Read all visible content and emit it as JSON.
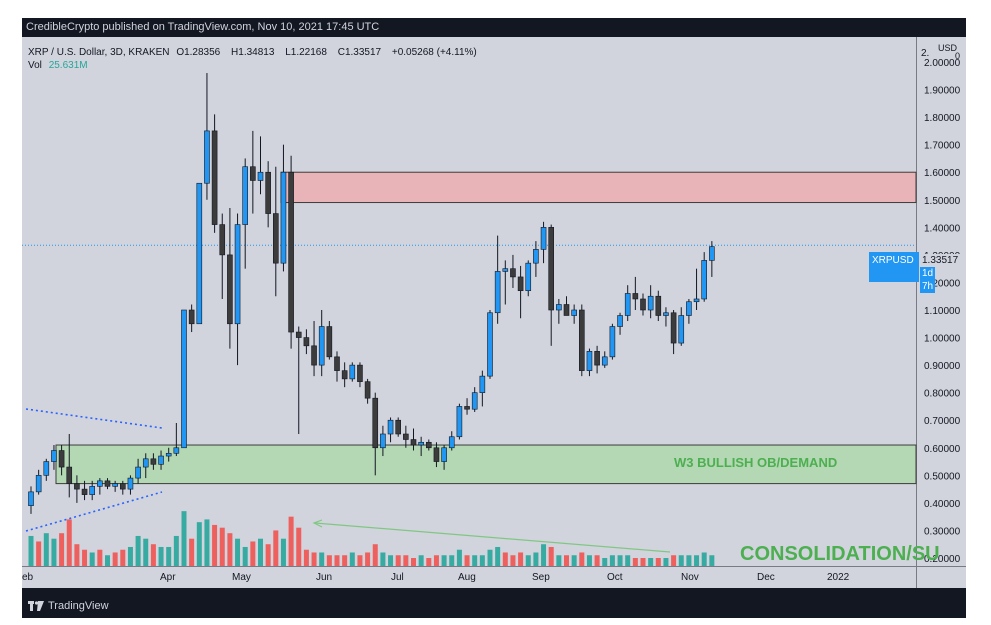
{
  "header": {
    "published": "CredibleCrypto published on TradingView.com, Nov 10, 2021 17:45 UTC"
  },
  "legend": {
    "symbol": "XRP / U.S. Dollar, 3D, KRAKEN",
    "open_label": "O",
    "open": "1.28356",
    "high_label": "H",
    "high": "1.34813",
    "low_label": "L",
    "low": "1.22168",
    "close_label": "C",
    "close": "1.33517",
    "change": "+0.05268 (+4.11%)",
    "vol_label": "Vol",
    "vol": "25.631M"
  },
  "price_tag": {
    "ticker": "XRPUSD",
    "price": "1.33517",
    "countdown": "1d 7h"
  },
  "annotations": {
    "demand": "W3 BULLISH OB/DEMAND",
    "consolidation": "CONSOLIDATION/SU"
  },
  "footer": {
    "brand": "TradingView"
  },
  "colors": {
    "frame": "#131722",
    "plot_bg": "#d1d4dc",
    "up": "#2196f3",
    "down": "#3c3c3c",
    "vol_up": "#26a69a",
    "vol_down": "#ef5350",
    "supply_zone": "#e8b4b8",
    "demand_zone": "#b4d7b4",
    "demand_text": "#4caf50"
  },
  "chart_data": {
    "type": "candlestick",
    "axis_unit": "USD",
    "y_axis_ticks": [
      "2.00000",
      "1.90000",
      "1.80000",
      "1.70000",
      "1.60000",
      "1.50000",
      "1.40000",
      "1.30000",
      "1.20000",
      "1.10000",
      "1.00000",
      "0.90000",
      "0.80000",
      "0.70000",
      "0.60000",
      "0.50000",
      "0.40000",
      "0.30000",
      "0.20000"
    ],
    "y_axis_top_label": "2.",
    "x_axis_ticks": [
      "eb",
      "Apr",
      "May",
      "Jun",
      "Jul",
      "Aug",
      "Sep",
      "Oct",
      "Nov",
      "Dec",
      "2022"
    ],
    "ylim": [
      0.18,
      2.0
    ],
    "zones": [
      {
        "name": "supply",
        "from": 1.49,
        "to": 1.6
      },
      {
        "name": "demand",
        "from": 0.47,
        "to": 0.61
      }
    ],
    "last_price": 1.33517,
    "candles": [
      {
        "o": 0.39,
        "h": 0.46,
        "l": 0.36,
        "c": 0.44
      },
      {
        "o": 0.44,
        "h": 0.52,
        "l": 0.43,
        "c": 0.5
      },
      {
        "o": 0.5,
        "h": 0.56,
        "l": 0.48,
        "c": 0.55
      },
      {
        "o": 0.55,
        "h": 0.61,
        "l": 0.52,
        "c": 0.59
      },
      {
        "o": 0.59,
        "h": 0.61,
        "l": 0.5,
        "c": 0.53
      },
      {
        "o": 0.53,
        "h": 0.65,
        "l": 0.42,
        "c": 0.47
      },
      {
        "o": 0.47,
        "h": 0.5,
        "l": 0.4,
        "c": 0.45
      },
      {
        "o": 0.45,
        "h": 0.48,
        "l": 0.41,
        "c": 0.43
      },
      {
        "o": 0.43,
        "h": 0.48,
        "l": 0.41,
        "c": 0.46
      },
      {
        "o": 0.46,
        "h": 0.49,
        "l": 0.43,
        "c": 0.48
      },
      {
        "o": 0.48,
        "h": 0.49,
        "l": 0.45,
        "c": 0.46
      },
      {
        "o": 0.46,
        "h": 0.48,
        "l": 0.44,
        "c": 0.47
      },
      {
        "o": 0.47,
        "h": 0.48,
        "l": 0.43,
        "c": 0.45
      },
      {
        "o": 0.45,
        "h": 0.5,
        "l": 0.43,
        "c": 0.49
      },
      {
        "o": 0.49,
        "h": 0.56,
        "l": 0.47,
        "c": 0.53
      },
      {
        "o": 0.53,
        "h": 0.58,
        "l": 0.49,
        "c": 0.56
      },
      {
        "o": 0.56,
        "h": 0.58,
        "l": 0.52,
        "c": 0.54
      },
      {
        "o": 0.54,
        "h": 0.59,
        "l": 0.52,
        "c": 0.57
      },
      {
        "o": 0.57,
        "h": 0.6,
        "l": 0.55,
        "c": 0.58
      },
      {
        "o": 0.58,
        "h": 0.69,
        "l": 0.57,
        "c": 0.6
      },
      {
        "o": 0.6,
        "h": 1.1,
        "l": 0.6,
        "c": 1.1
      },
      {
        "o": 1.1,
        "h": 1.12,
        "l": 1.02,
        "c": 1.05
      },
      {
        "o": 1.05,
        "h": 1.56,
        "l": 1.05,
        "c": 1.56
      },
      {
        "o": 1.56,
        "h": 1.96,
        "l": 1.5,
        "c": 1.75
      },
      {
        "o": 1.75,
        "h": 1.81,
        "l": 1.38,
        "c": 1.41
      },
      {
        "o": 1.41,
        "h": 1.45,
        "l": 1.14,
        "c": 1.3
      },
      {
        "o": 1.3,
        "h": 1.47,
        "l": 0.96,
        "c": 1.05
      },
      {
        "o": 1.05,
        "h": 1.45,
        "l": 0.9,
        "c": 1.41
      },
      {
        "o": 1.41,
        "h": 1.65,
        "l": 1.25,
        "c": 1.62
      },
      {
        "o": 1.62,
        "h": 1.75,
        "l": 1.45,
        "c": 1.57
      },
      {
        "o": 1.57,
        "h": 1.73,
        "l": 1.52,
        "c": 1.6
      },
      {
        "o": 1.6,
        "h": 1.64,
        "l": 1.4,
        "c": 1.45
      },
      {
        "o": 1.45,
        "h": 1.62,
        "l": 1.15,
        "c": 1.27
      },
      {
        "o": 1.27,
        "h": 1.7,
        "l": 1.24,
        "c": 1.6
      },
      {
        "o": 1.6,
        "h": 1.66,
        "l": 0.96,
        "c": 1.02
      },
      {
        "o": 1.02,
        "h": 1.04,
        "l": 0.65,
        "c": 1.0
      },
      {
        "o": 1.0,
        "h": 1.03,
        "l": 0.94,
        "c": 0.97
      },
      {
        "o": 0.97,
        "h": 1.06,
        "l": 0.86,
        "c": 0.9
      },
      {
        "o": 0.9,
        "h": 1.1,
        "l": 0.86,
        "c": 1.04
      },
      {
        "o": 1.04,
        "h": 1.06,
        "l": 0.92,
        "c": 0.93
      },
      {
        "o": 0.93,
        "h": 0.95,
        "l": 0.84,
        "c": 0.88
      },
      {
        "o": 0.88,
        "h": 0.91,
        "l": 0.82,
        "c": 0.85
      },
      {
        "o": 0.85,
        "h": 0.91,
        "l": 0.84,
        "c": 0.9
      },
      {
        "o": 0.9,
        "h": 0.91,
        "l": 0.82,
        "c": 0.84
      },
      {
        "o": 0.84,
        "h": 0.85,
        "l": 0.76,
        "c": 0.78
      },
      {
        "o": 0.78,
        "h": 0.8,
        "l": 0.5,
        "c": 0.6
      },
      {
        "o": 0.6,
        "h": 0.68,
        "l": 0.57,
        "c": 0.65
      },
      {
        "o": 0.65,
        "h": 0.71,
        "l": 0.62,
        "c": 0.7
      },
      {
        "o": 0.7,
        "h": 0.71,
        "l": 0.64,
        "c": 0.65
      },
      {
        "o": 0.65,
        "h": 0.68,
        "l": 0.6,
        "c": 0.63
      },
      {
        "o": 0.63,
        "h": 0.67,
        "l": 0.59,
        "c": 0.61
      },
      {
        "o": 0.61,
        "h": 0.64,
        "l": 0.57,
        "c": 0.62
      },
      {
        "o": 0.62,
        "h": 0.63,
        "l": 0.59,
        "c": 0.6
      },
      {
        "o": 0.6,
        "h": 0.62,
        "l": 0.53,
        "c": 0.55
      },
      {
        "o": 0.55,
        "h": 0.61,
        "l": 0.52,
        "c": 0.6
      },
      {
        "o": 0.6,
        "h": 0.66,
        "l": 0.59,
        "c": 0.64
      },
      {
        "o": 0.64,
        "h": 0.76,
        "l": 0.63,
        "c": 0.75
      },
      {
        "o": 0.75,
        "h": 0.78,
        "l": 0.72,
        "c": 0.74
      },
      {
        "o": 0.74,
        "h": 0.82,
        "l": 0.73,
        "c": 0.8
      },
      {
        "o": 0.8,
        "h": 0.88,
        "l": 0.75,
        "c": 0.86
      },
      {
        "o": 0.86,
        "h": 1.1,
        "l": 0.85,
        "c": 1.09
      },
      {
        "o": 1.09,
        "h": 1.37,
        "l": 1.05,
        "c": 1.24
      },
      {
        "o": 1.24,
        "h": 1.28,
        "l": 1.12,
        "c": 1.25
      },
      {
        "o": 1.25,
        "h": 1.3,
        "l": 1.18,
        "c": 1.22
      },
      {
        "o": 1.22,
        "h": 1.26,
        "l": 1.07,
        "c": 1.17
      },
      {
        "o": 1.17,
        "h": 1.28,
        "l": 1.15,
        "c": 1.27
      },
      {
        "o": 1.27,
        "h": 1.35,
        "l": 1.22,
        "c": 1.32
      },
      {
        "o": 1.32,
        "h": 1.42,
        "l": 1.27,
        "c": 1.4
      },
      {
        "o": 1.4,
        "h": 1.41,
        "l": 0.97,
        "c": 1.1
      },
      {
        "o": 1.1,
        "h": 1.14,
        "l": 1.05,
        "c": 1.12
      },
      {
        "o": 1.12,
        "h": 1.15,
        "l": 1.08,
        "c": 1.08
      },
      {
        "o": 1.08,
        "h": 1.12,
        "l": 1.05,
        "c": 1.1
      },
      {
        "o": 1.1,
        "h": 1.12,
        "l": 0.86,
        "c": 0.88
      },
      {
        "o": 0.88,
        "h": 0.96,
        "l": 0.86,
        "c": 0.95
      },
      {
        "o": 0.95,
        "h": 0.97,
        "l": 0.87,
        "c": 0.9
      },
      {
        "o": 0.9,
        "h": 0.95,
        "l": 0.89,
        "c": 0.93
      },
      {
        "o": 0.93,
        "h": 1.05,
        "l": 0.92,
        "c": 1.04
      },
      {
        "o": 1.04,
        "h": 1.09,
        "l": 1.01,
        "c": 1.08
      },
      {
        "o": 1.08,
        "h": 1.19,
        "l": 1.06,
        "c": 1.16
      },
      {
        "o": 1.16,
        "h": 1.22,
        "l": 1.1,
        "c": 1.14
      },
      {
        "o": 1.14,
        "h": 1.16,
        "l": 1.08,
        "c": 1.1
      },
      {
        "o": 1.1,
        "h": 1.19,
        "l": 1.07,
        "c": 1.15
      },
      {
        "o": 1.15,
        "h": 1.17,
        "l": 1.06,
        "c": 1.08
      },
      {
        "o": 1.08,
        "h": 1.11,
        "l": 1.04,
        "c": 1.09
      },
      {
        "o": 1.09,
        "h": 1.1,
        "l": 0.94,
        "c": 0.98
      },
      {
        "o": 0.98,
        "h": 1.11,
        "l": 0.97,
        "c": 1.08
      },
      {
        "o": 1.08,
        "h": 1.14,
        "l": 1.05,
        "c": 1.13
      },
      {
        "o": 1.13,
        "h": 1.25,
        "l": 1.1,
        "c": 1.14
      },
      {
        "o": 1.14,
        "h": 1.31,
        "l": 1.13,
        "c": 1.28
      },
      {
        "o": 1.28,
        "h": 1.35,
        "l": 1.22,
        "c": 1.33
      }
    ],
    "volume": [
      {
        "v": 0.28,
        "up": true
      },
      {
        "v": 0.26,
        "up": false
      },
      {
        "v": 0.29,
        "up": true
      },
      {
        "v": 0.27,
        "up": true
      },
      {
        "v": 0.29,
        "up": false
      },
      {
        "v": 0.34,
        "up": false
      },
      {
        "v": 0.25,
        "up": false
      },
      {
        "v": 0.23,
        "up": false
      },
      {
        "v": 0.22,
        "up": true
      },
      {
        "v": 0.23,
        "up": false
      },
      {
        "v": 0.21,
        "up": true
      },
      {
        "v": 0.22,
        "up": false
      },
      {
        "v": 0.23,
        "up": false
      },
      {
        "v": 0.24,
        "up": true
      },
      {
        "v": 0.28,
        "up": true
      },
      {
        "v": 0.27,
        "up": true
      },
      {
        "v": 0.25,
        "up": false
      },
      {
        "v": 0.24,
        "up": true
      },
      {
        "v": 0.24,
        "up": true
      },
      {
        "v": 0.28,
        "up": true
      },
      {
        "v": 0.37,
        "up": true
      },
      {
        "v": 0.27,
        "up": false
      },
      {
        "v": 0.33,
        "up": true
      },
      {
        "v": 0.34,
        "up": true
      },
      {
        "v": 0.32,
        "up": false
      },
      {
        "v": 0.31,
        "up": false
      },
      {
        "v": 0.29,
        "up": false
      },
      {
        "v": 0.27,
        "up": true
      },
      {
        "v": 0.24,
        "up": true
      },
      {
        "v": 0.26,
        "up": false
      },
      {
        "v": 0.27,
        "up": true
      },
      {
        "v": 0.25,
        "up": false
      },
      {
        "v": 0.3,
        "up": false
      },
      {
        "v": 0.27,
        "up": true
      },
      {
        "v": 0.35,
        "up": false
      },
      {
        "v": 0.31,
        "up": false
      },
      {
        "v": 0.23,
        "up": false
      },
      {
        "v": 0.22,
        "up": false
      },
      {
        "v": 0.22,
        "up": true
      },
      {
        "v": 0.21,
        "up": false
      },
      {
        "v": 0.21,
        "up": false
      },
      {
        "v": 0.21,
        "up": false
      },
      {
        "v": 0.22,
        "up": true
      },
      {
        "v": 0.21,
        "up": false
      },
      {
        "v": 0.22,
        "up": false
      },
      {
        "v": 0.25,
        "up": false
      },
      {
        "v": 0.22,
        "up": true
      },
      {
        "v": 0.21,
        "up": true
      },
      {
        "v": 0.21,
        "up": false
      },
      {
        "v": 0.21,
        "up": false
      },
      {
        "v": 0.2,
        "up": false
      },
      {
        "v": 0.21,
        "up": true
      },
      {
        "v": 0.2,
        "up": false
      },
      {
        "v": 0.21,
        "up": false
      },
      {
        "v": 0.21,
        "up": true
      },
      {
        "v": 0.21,
        "up": true
      },
      {
        "v": 0.23,
        "up": true
      },
      {
        "v": 0.21,
        "up": false
      },
      {
        "v": 0.21,
        "up": true
      },
      {
        "v": 0.21,
        "up": true
      },
      {
        "v": 0.23,
        "up": true
      },
      {
        "v": 0.24,
        "up": true
      },
      {
        "v": 0.22,
        "up": false
      },
      {
        "v": 0.21,
        "up": false
      },
      {
        "v": 0.22,
        "up": false
      },
      {
        "v": 0.21,
        "up": true
      },
      {
        "v": 0.22,
        "up": true
      },
      {
        "v": 0.25,
        "up": true
      },
      {
        "v": 0.24,
        "up": false
      },
      {
        "v": 0.21,
        "up": true
      },
      {
        "v": 0.21,
        "up": false
      },
      {
        "v": 0.21,
        "up": true
      },
      {
        "v": 0.22,
        "up": false
      },
      {
        "v": 0.21,
        "up": true
      },
      {
        "v": 0.21,
        "up": false
      },
      {
        "v": 0.2,
        "up": true
      },
      {
        "v": 0.21,
        "up": true
      },
      {
        "v": 0.21,
        "up": true
      },
      {
        "v": 0.21,
        "up": true
      },
      {
        "v": 0.2,
        "up": false
      },
      {
        "v": 0.2,
        "up": false
      },
      {
        "v": 0.2,
        "up": true
      },
      {
        "v": 0.2,
        "up": false
      },
      {
        "v": 0.2,
        "up": true
      },
      {
        "v": 0.21,
        "up": false
      },
      {
        "v": 0.21,
        "up": true
      },
      {
        "v": 0.21,
        "up": true
      },
      {
        "v": 0.21,
        "up": true
      },
      {
        "v": 0.22,
        "up": true
      },
      {
        "v": 0.21,
        "up": true
      }
    ]
  }
}
